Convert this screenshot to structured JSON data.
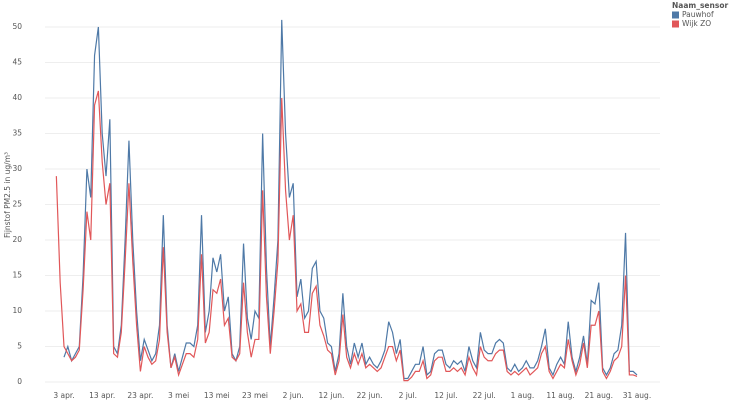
{
  "chart_data": {
    "type": "line",
    "y_label": "Fijnstof PM2.5 in ug/m³",
    "legend_title": "Naam_sensor",
    "legend": "top-right",
    "grid": true,
    "ylim": [
      -1.4,
      53
    ],
    "yticks": [
      0,
      5,
      10,
      15,
      20,
      25,
      30,
      35,
      40,
      45,
      50
    ],
    "categories": [
      null,
      null,
      "3 apr.",
      null,
      null,
      null,
      null,
      null,
      null,
      null,
      null,
      null,
      "13 apr.",
      null,
      null,
      null,
      null,
      null,
      null,
      null,
      null,
      null,
      "23 apr.",
      null,
      null,
      null,
      null,
      null,
      null,
      null,
      null,
      null,
      "3 mei",
      null,
      null,
      null,
      null,
      null,
      null,
      null,
      null,
      null,
      "13 mei",
      null,
      null,
      null,
      null,
      null,
      null,
      null,
      null,
      null,
      "23 mei",
      null,
      null,
      null,
      null,
      null,
      null,
      null,
      null,
      null,
      "2 jun.",
      null,
      null,
      null,
      null,
      null,
      null,
      null,
      null,
      null,
      "12 jun.",
      null,
      null,
      null,
      null,
      null,
      null,
      null,
      null,
      null,
      "22 jun.",
      null,
      null,
      null,
      null,
      null,
      null,
      null,
      null,
      null,
      "2 jul.",
      null,
      null,
      null,
      null,
      null,
      null,
      null,
      null,
      null,
      "12 jul.",
      null,
      null,
      null,
      null,
      null,
      null,
      null,
      null,
      null,
      "22 jul.",
      null,
      null,
      null,
      null,
      null,
      null,
      null,
      null,
      null,
      "1 aug.",
      null,
      null,
      null,
      null,
      null,
      null,
      null,
      null,
      null,
      "11 aug.",
      null,
      null,
      null,
      null,
      null,
      null,
      null,
      null,
      null,
      "21 aug.",
      null,
      null,
      null,
      null,
      null,
      null,
      null,
      null,
      null,
      "31 aug."
    ],
    "series": [
      {
        "name": "Pauwhof",
        "color": "#4e79a7",
        "values": [
          null,
          null,
          3.5,
          5,
          3,
          4,
          5,
          15,
          30,
          26,
          46,
          50,
          35,
          29,
          37,
          5,
          4,
          8,
          20,
          34,
          20,
          10,
          3,
          6,
          4.5,
          3,
          4,
          8,
          23.5,
          8,
          2,
          4,
          1.5,
          3.5,
          5.5,
          5.5,
          5,
          8,
          23.5,
          7,
          10,
          17.5,
          15.5,
          18,
          10,
          12,
          4,
          3,
          5,
          19.5,
          9,
          6,
          10,
          9,
          35,
          16,
          5,
          12,
          20,
          51,
          35,
          26,
          28,
          12,
          14.5,
          9,
          10,
          16,
          17,
          10,
          9,
          5.5,
          5,
          1.5,
          4,
          12.5,
          5,
          2.5,
          5.5,
          3.5,
          5.5,
          2.5,
          3.5,
          2.5,
          2,
          3,
          4.5,
          8.5,
          7,
          4,
          6,
          0.5,
          0.5,
          1.5,
          2.5,
          2.5,
          5,
          1,
          1.5,
          4,
          4.5,
          4.5,
          2.5,
          2,
          3,
          2.5,
          3,
          1.5,
          5,
          3,
          2,
          7,
          4.5,
          4,
          4,
          5.5,
          6,
          5.5,
          2,
          1.5,
          2.5,
          1.5,
          2,
          3,
          2,
          2,
          3,
          5,
          7.5,
          2,
          1,
          2.5,
          3.5,
          2.5,
          8.5,
          3.5,
          1.5,
          3.5,
          6.5,
          2.5,
          11.5,
          11,
          14,
          2,
          1,
          2,
          4,
          4.5,
          8,
          21,
          1.5,
          1.5,
          1
        ]
      },
      {
        "name": "Wijk ZO",
        "color": "#e15759",
        "values": [
          29,
          14,
          5,
          4,
          3,
          3.5,
          4.5,
          13,
          24,
          20,
          39,
          41,
          31,
          25,
          28,
          4,
          3.5,
          7,
          17,
          28,
          17,
          8,
          1.5,
          5,
          3.5,
          2.5,
          3,
          6,
          19,
          7,
          2,
          3.5,
          1,
          2.5,
          4,
          4,
          3.5,
          6,
          18,
          5.5,
          7,
          13,
          12.5,
          14.5,
          8,
          9,
          3.5,
          3,
          4,
          14,
          7,
          3.5,
          6,
          6,
          27,
          12,
          4,
          10,
          17,
          40,
          27,
          20,
          23.5,
          10,
          11,
          7,
          7,
          12.5,
          13.5,
          8,
          6.5,
          4.5,
          4,
          1,
          3,
          9.5,
          3.5,
          2,
          4,
          2.5,
          4,
          2,
          2.5,
          2,
          1.5,
          2,
          3.5,
          5,
          5,
          3,
          4.5,
          0.2,
          0.2,
          0.7,
          1.5,
          1.5,
          3,
          0.5,
          1,
          3,
          3.5,
          3.5,
          1.5,
          1.5,
          2,
          1.5,
          2,
          1,
          3.5,
          2,
          1,
          5,
          3.5,
          3,
          3,
          4,
          4.5,
          4.5,
          1.5,
          1,
          1.5,
          1,
          1.5,
          2,
          1,
          1.5,
          2,
          4,
          5,
          1.5,
          0.5,
          1.5,
          2.5,
          2,
          6,
          3,
          1,
          2.5,
          5.5,
          2,
          8,
          8,
          10,
          1.5,
          0.5,
          1.5,
          3,
          3.5,
          5,
          15,
          1,
          1,
          0.8
        ]
      }
    ]
  }
}
